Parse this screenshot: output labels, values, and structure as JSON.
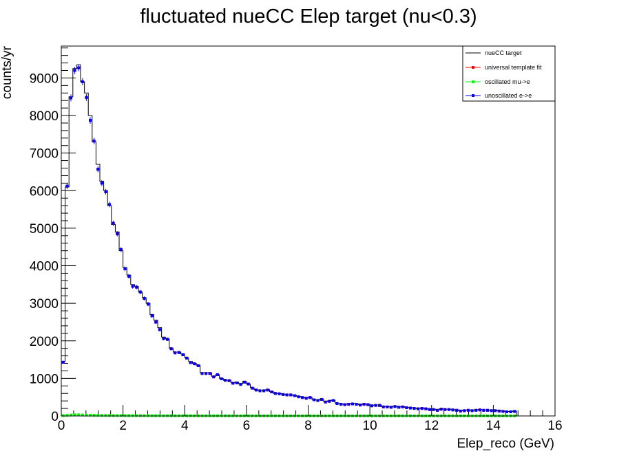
{
  "chart_data": {
    "type": "histogram",
    "title": "fluctuated nueCC Elep target (nu<0.3)",
    "xlabel": "Elep_reco (GeV)",
    "ylabel": "counts/yr",
    "xlim": [
      0,
      16
    ],
    "ylim": [
      0,
      9850
    ],
    "grid": false,
    "legend_position": "top-right",
    "x_ticks": [
      0,
      2,
      4,
      6,
      8,
      10,
      12,
      14,
      16
    ],
    "y_ticks": [
      0,
      1000,
      2000,
      3000,
      4000,
      5000,
      6000,
      7000,
      8000,
      9000
    ],
    "x_tick_labels": [
      "0",
      "2",
      "4",
      "6",
      "8",
      "10",
      "12",
      "14",
      "16"
    ],
    "y_tick_labels": [
      "0",
      "1000",
      "2000",
      "3000",
      "4000",
      "5000",
      "6000",
      "7000",
      "8000",
      "9000"
    ],
    "bin_width": 0.125,
    "series": [
      {
        "name": "nueCC target",
        "style": "step",
        "color": "#000000",
        "values": [
          1450,
          6100,
          8500,
          9250,
          9350,
          8900,
          8600,
          8000,
          7300,
          6700,
          6250,
          6000,
          5600,
          5100,
          4900,
          4400,
          3950,
          3750,
          3500,
          3450,
          3300,
          3150,
          3000,
          2700,
          2550,
          2350,
          2100,
          2050,
          1800,
          1700,
          1700,
          1650,
          1550,
          1450,
          1400,
          1350,
          1150,
          1150,
          1150,
          1050,
          1100,
          1000,
          950,
          950,
          880,
          900,
          850,
          920,
          850,
          750,
          700,
          680,
          680,
          700,
          650,
          600,
          600,
          580,
          560,
          560,
          550,
          520,
          500,
          480,
          500,
          440,
          420,
          450,
          380,
          400,
          420,
          330,
          320,
          310,
          320,
          330,
          320,
          300,
          320,
          310,
          280,
          290,
          290,
          250,
          250,
          240,
          260,
          240,
          250,
          230,
          220,
          210,
          200,
          210,
          200,
          180,
          180,
          160,
          190,
          180,
          180,
          170,
          160,
          140,
          150,
          160,
          150,
          160,
          170,
          160,
          160,
          150,
          150,
          140,
          130,
          120,
          120,
          130
        ]
      },
      {
        "name": "universal template fit",
        "style": "marker",
        "color": "#ff0000",
        "values": [
          1430,
          6120,
          8470,
          9200,
          9270,
          8900,
          8480,
          7870,
          7320,
          6570,
          6200,
          5970,
          5630,
          5130,
          4850,
          4430,
          3920,
          3720,
          3450,
          3430,
          3300,
          3130,
          2980,
          2670,
          2500,
          2300,
          2060,
          2040,
          1790,
          1680,
          1690,
          1630,
          1540,
          1420,
          1390,
          1340,
          1130,
          1130,
          1130,
          1040,
          1100,
          990,
          950,
          940,
          870,
          880,
          840,
          900,
          850,
          740,
          690,
          670,
          670,
          690,
          640,
          600,
          590,
          570,
          560,
          560,
          540,
          510,
          490,
          470,
          490,
          430,
          410,
          440,
          370,
          390,
          410,
          330,
          310,
          300,
          310,
          320,
          310,
          290,
          310,
          300,
          270,
          280,
          280,
          240,
          240,
          230,
          250,
          230,
          240,
          220,
          210,
          200,
          190,
          200,
          190,
          170,
          170,
          150,
          180,
          170,
          170,
          160,
          150,
          130,
          140,
          150,
          140,
          150,
          160,
          150,
          150,
          140,
          140,
          130,
          120,
          110,
          110,
          120
        ]
      },
      {
        "name": "oscillated mu->e",
        "style": "marker",
        "color": "#00ff00",
        "values": [
          10,
          20,
          25,
          30,
          30,
          25,
          22,
          20,
          18,
          16,
          15,
          14,
          13,
          12,
          11,
          10,
          10,
          9,
          9,
          8,
          8,
          8,
          7,
          7,
          7,
          6,
          6,
          6,
          6,
          5,
          5,
          5,
          5,
          5,
          5,
          4,
          4,
          4,
          4,
          4,
          4,
          4,
          4,
          3,
          3,
          3,
          3,
          3,
          3,
          3,
          3,
          3,
          3,
          3,
          3,
          3,
          3,
          2,
          2,
          2,
          2,
          2,
          2,
          2,
          2,
          2,
          2,
          2,
          2,
          2,
          2,
          2,
          2,
          2,
          2,
          2,
          2,
          2,
          2,
          2,
          2,
          2,
          2,
          2,
          2,
          2,
          2,
          2,
          2,
          2,
          2,
          2,
          2,
          2,
          2,
          2,
          2,
          2,
          2,
          2,
          2,
          2,
          2,
          2,
          2,
          2,
          2,
          2,
          2,
          2,
          2,
          2,
          2,
          2,
          2,
          2,
          2,
          2
        ]
      },
      {
        "name": "unoscillated e->e",
        "style": "marker",
        "color": "#0000ff",
        "values": [
          1430,
          6120,
          8470,
          9200,
          9270,
          8900,
          8480,
          7870,
          7320,
          6570,
          6200,
          5970,
          5630,
          5130,
          4850,
          4430,
          3920,
          3720,
          3450,
          3430,
          3300,
          3130,
          2980,
          2670,
          2500,
          2300,
          2060,
          2040,
          1790,
          1680,
          1690,
          1630,
          1540,
          1420,
          1390,
          1340,
          1130,
          1130,
          1130,
          1040,
          1100,
          990,
          950,
          940,
          870,
          880,
          840,
          900,
          850,
          740,
          690,
          670,
          670,
          690,
          640,
          600,
          590,
          570,
          560,
          560,
          540,
          510,
          490,
          470,
          490,
          430,
          410,
          440,
          370,
          390,
          410,
          330,
          310,
          300,
          310,
          320,
          310,
          290,
          310,
          300,
          270,
          280,
          280,
          240,
          240,
          230,
          250,
          230,
          240,
          220,
          210,
          200,
          190,
          200,
          190,
          170,
          170,
          150,
          180,
          170,
          170,
          160,
          150,
          130,
          140,
          150,
          140,
          150,
          160,
          150,
          150,
          140,
          140,
          130,
          120,
          110,
          110,
          120
        ]
      }
    ]
  }
}
